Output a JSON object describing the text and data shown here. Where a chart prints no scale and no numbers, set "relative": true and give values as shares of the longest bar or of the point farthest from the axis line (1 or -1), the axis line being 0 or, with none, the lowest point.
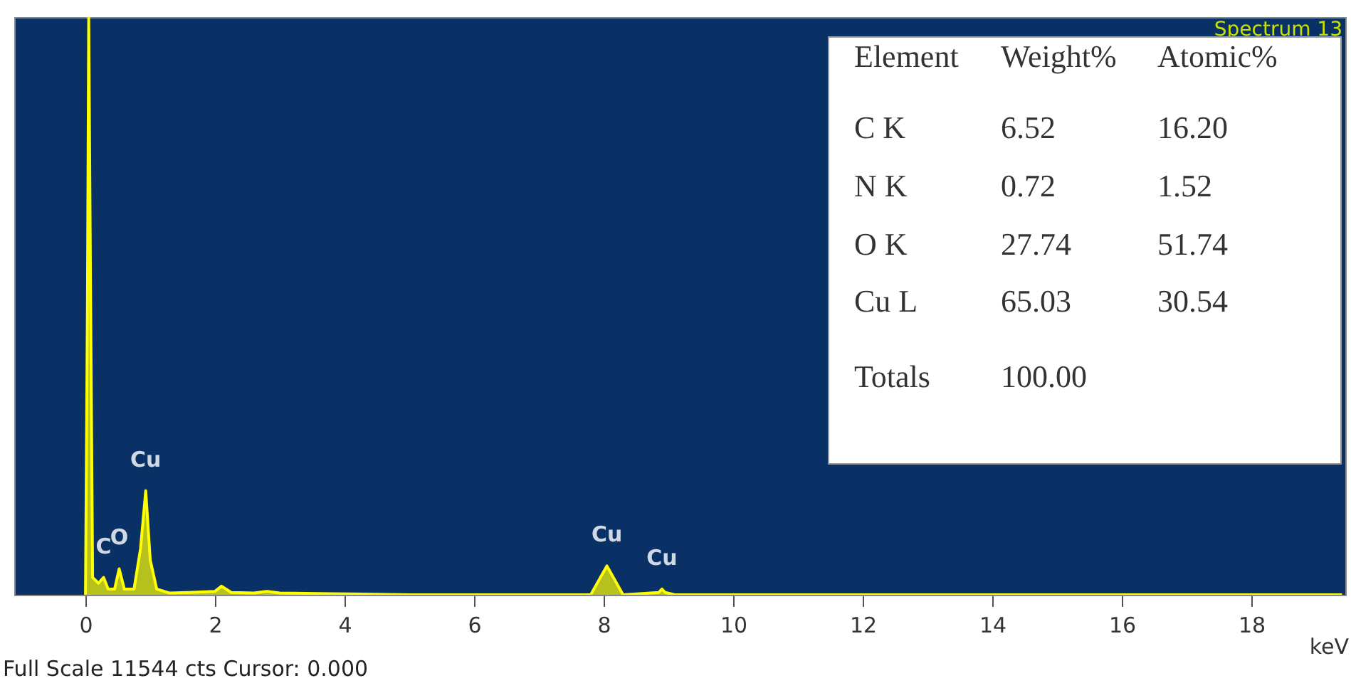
{
  "chart_data": {
    "type": "area",
    "title": "Spectrum 13",
    "xlabel": "keV",
    "relative": true,
    "x": [
      0.0,
      0.03,
      0.05,
      0.08,
      0.11,
      0.2,
      0.28,
      0.35,
      0.45,
      0.52,
      0.6,
      0.75,
      0.85,
      0.93,
      1.0,
      1.1,
      1.3,
      1.6,
      2.0,
      2.1,
      2.25,
      2.6,
      2.8,
      3.0,
      3.8,
      5.0,
      7.8,
      7.95,
      8.05,
      8.15,
      8.3,
      8.85,
      8.9,
      8.95,
      9.1,
      19.4
    ],
    "series": [
      {
        "color": "#ffff00",
        "values": [
          0,
          0.5,
          1,
          0.5,
          0.03,
          0.02,
          0.03,
          0.01,
          0.01,
          0.045,
          0.01,
          0.01,
          0.08,
          0.18,
          0.06,
          0.01,
          0.003,
          0.004,
          0.006,
          0.015,
          0.004,
          0.003,
          0.006,
          0.003,
          0.002,
          0,
          0,
          0.03,
          0.05,
          0.03,
          0,
          0.004,
          0.01,
          0.004,
          0,
          0
        ]
      }
    ],
    "xlim": [
      -1.1,
      19.45
    ],
    "xticks": [
      0,
      2,
      4,
      6,
      8,
      10,
      12,
      14,
      16,
      18
    ],
    "grid": false,
    "annotations": [
      {
        "text": "C",
        "x": 0.28,
        "y": 0.03
      },
      {
        "text": "O",
        "x": 0.52,
        "y": 0.045
      },
      {
        "text": "Cu",
        "x": 0.93,
        "y": 0.18
      },
      {
        "text": "Cu",
        "x": 8.05,
        "y": 0.05
      },
      {
        "text": "Cu",
        "x": 8.9,
        "y": 0.01
      },
      "Full Scale 11544 cts Cursor: 0.000",
      "Element",
      "Weight%",
      "Atomic%",
      "C K",
      "6.52",
      "16.20",
      "N K",
      "0.72",
      "1.52",
      "O K",
      "27.74",
      "51.74",
      "Cu L",
      "65.03",
      "30.54",
      "Totals",
      "100.00"
    ]
  }
}
